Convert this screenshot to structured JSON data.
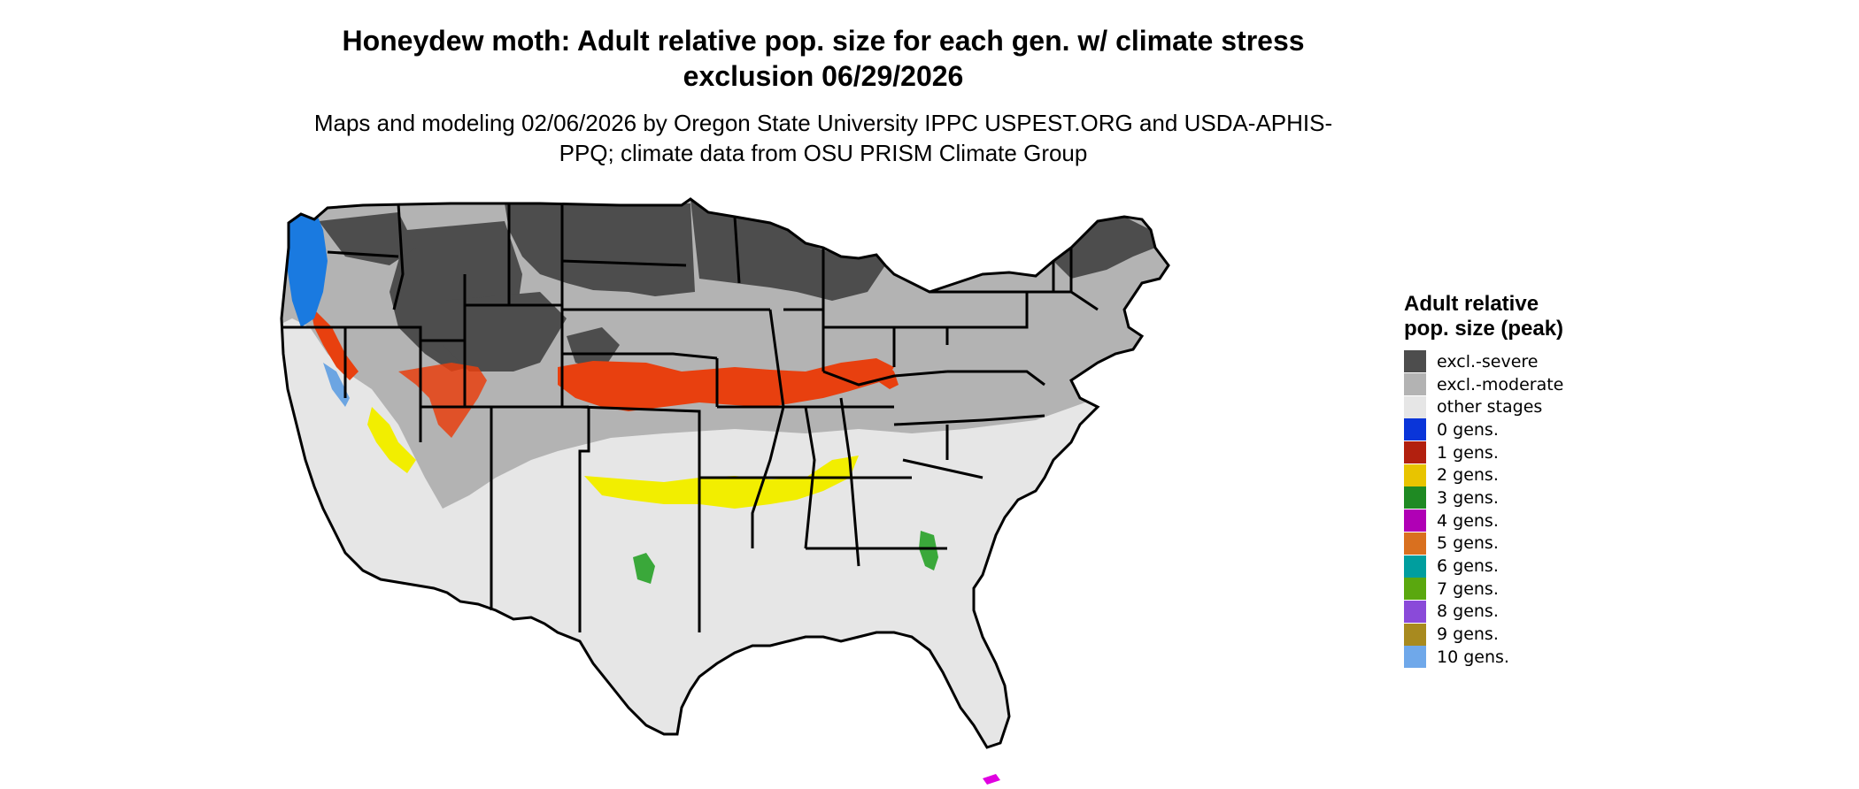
{
  "title": "Honeydew moth: Adult relative pop. size for each gen. w/ climate stress exclusion 06/29/2026",
  "subtitle": "Maps and modeling 02/06/2026 by Oregon State University IPPC USPEST.ORG and USDA-APHIS-PPQ; climate data from OSU PRISM Climate Group",
  "legend": {
    "title": "Adult relative pop. size (peak)",
    "items": [
      {
        "label": "excl.-severe",
        "color": "#4d4d4d"
      },
      {
        "label": "excl.-moderate",
        "color": "#b3b3b3"
      },
      {
        "label": "other stages",
        "color": "#e6e6e6"
      },
      {
        "label": "0 gens.",
        "color": "#0a35d9"
      },
      {
        "label": "1 gens.",
        "color": "#b2200f"
      },
      {
        "label": "2 gens.",
        "color": "#e8c400"
      },
      {
        "label": "3 gens.",
        "color": "#1f8a23"
      },
      {
        "label": "4 gens.",
        "color": "#b000b5"
      },
      {
        "label": "5 gens.",
        "color": "#d9701f"
      },
      {
        "label": "6 gens.",
        "color": "#009e9e"
      },
      {
        "label": "7 gens.",
        "color": "#5aa80f"
      },
      {
        "label": "8 gens.",
        "color": "#8a4ad9"
      },
      {
        "label": "9 gens.",
        "color": "#a88a1f"
      },
      {
        "label": "10 gens.",
        "color": "#6fa8ea"
      }
    ]
  },
  "map_colors": {
    "background": "#e6e6e6",
    "severe": "#4d4d4d",
    "moderate": "#b3b3b3",
    "gen1": "#e8400f",
    "gen2": "#f2ee00",
    "gen3": "#3aa83a",
    "gen0": "#1a7ae0",
    "gen4": "#e000e0"
  }
}
